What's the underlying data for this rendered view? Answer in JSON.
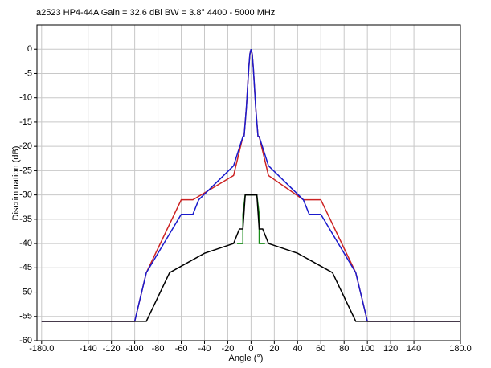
{
  "chart_data": {
    "type": "line",
    "title": "a2523   HP4-44A   Gain = 32.6 dBi   BW = 3.8°   4400 - 5000 MHz",
    "xlabel": "Angle (°)",
    "ylabel": "Discrimination (dB)",
    "xlim": [
      -184,
      180
    ],
    "ylim": [
      -60,
      5
    ],
    "xticks": [
      {
        "value": -180,
        "label": "-180.0"
      },
      -140,
      -120,
      -100,
      -80,
      -60,
      -40,
      -20,
      0,
      20,
      40,
      60,
      80,
      100,
      120,
      140,
      {
        "value": 180,
        "label": "180.0"
      }
    ],
    "yticks": [
      0,
      -5,
      -10,
      -15,
      -20,
      -25,
      -30,
      -35,
      -40,
      -45,
      -50,
      -55,
      -60
    ],
    "grid": true,
    "series": [
      {
        "color": "#cc2222",
        "x": [
          -180,
          -100,
          -90,
          -60,
          -50,
          -15,
          -7,
          -6,
          -4,
          -3,
          -2,
          -1,
          0,
          1,
          2,
          3,
          4,
          6,
          7,
          15,
          45,
          60,
          90,
          100,
          180
        ],
        "values": [
          -56,
          -56,
          -46,
          -31,
          -31,
          -26,
          -18,
          -18,
          -12,
          -8,
          -4,
          -1,
          0,
          -1,
          -4,
          -8,
          -12,
          -18,
          -18,
          -26,
          -31,
          -31,
          -46,
          -56,
          -56
        ]
      },
      {
        "color": "#1a1acc",
        "x": [
          -180,
          -100,
          -90,
          -60,
          -50,
          -45,
          -15,
          -7,
          -6,
          -4,
          -3,
          -2,
          -1,
          0,
          1,
          2,
          3,
          4,
          6,
          7,
          15,
          45,
          50,
          60,
          90,
          100,
          180
        ],
        "values": [
          -56,
          -56,
          -46,
          -34,
          -34,
          -31,
          -24,
          -18,
          -18,
          -12,
          -8,
          -4,
          -1,
          0,
          -1,
          -4,
          -8,
          -12,
          -18,
          -18,
          -24,
          -31,
          -34,
          -34,
          -46,
          -56,
          -56
        ]
      },
      {
        "color": "#1a8c1a",
        "x": [
          -12,
          -7,
          -7,
          -5,
          5,
          7,
          7,
          12
        ],
        "values": [
          -40,
          -40,
          -34,
          -30,
          -30,
          -34,
          -40,
          -40
        ]
      },
      {
        "color": "#000000",
        "x": [
          -180,
          -90,
          -70,
          -40,
          -15,
          -10,
          -7,
          -5,
          5,
          7,
          10,
          15,
          40,
          70,
          90,
          180
        ],
        "values": [
          -56,
          -56,
          -46,
          -42,
          -40,
          -37,
          -37,
          -30,
          -30,
          -37,
          -37,
          -40,
          -42,
          -46,
          -56,
          -56
        ]
      }
    ]
  }
}
